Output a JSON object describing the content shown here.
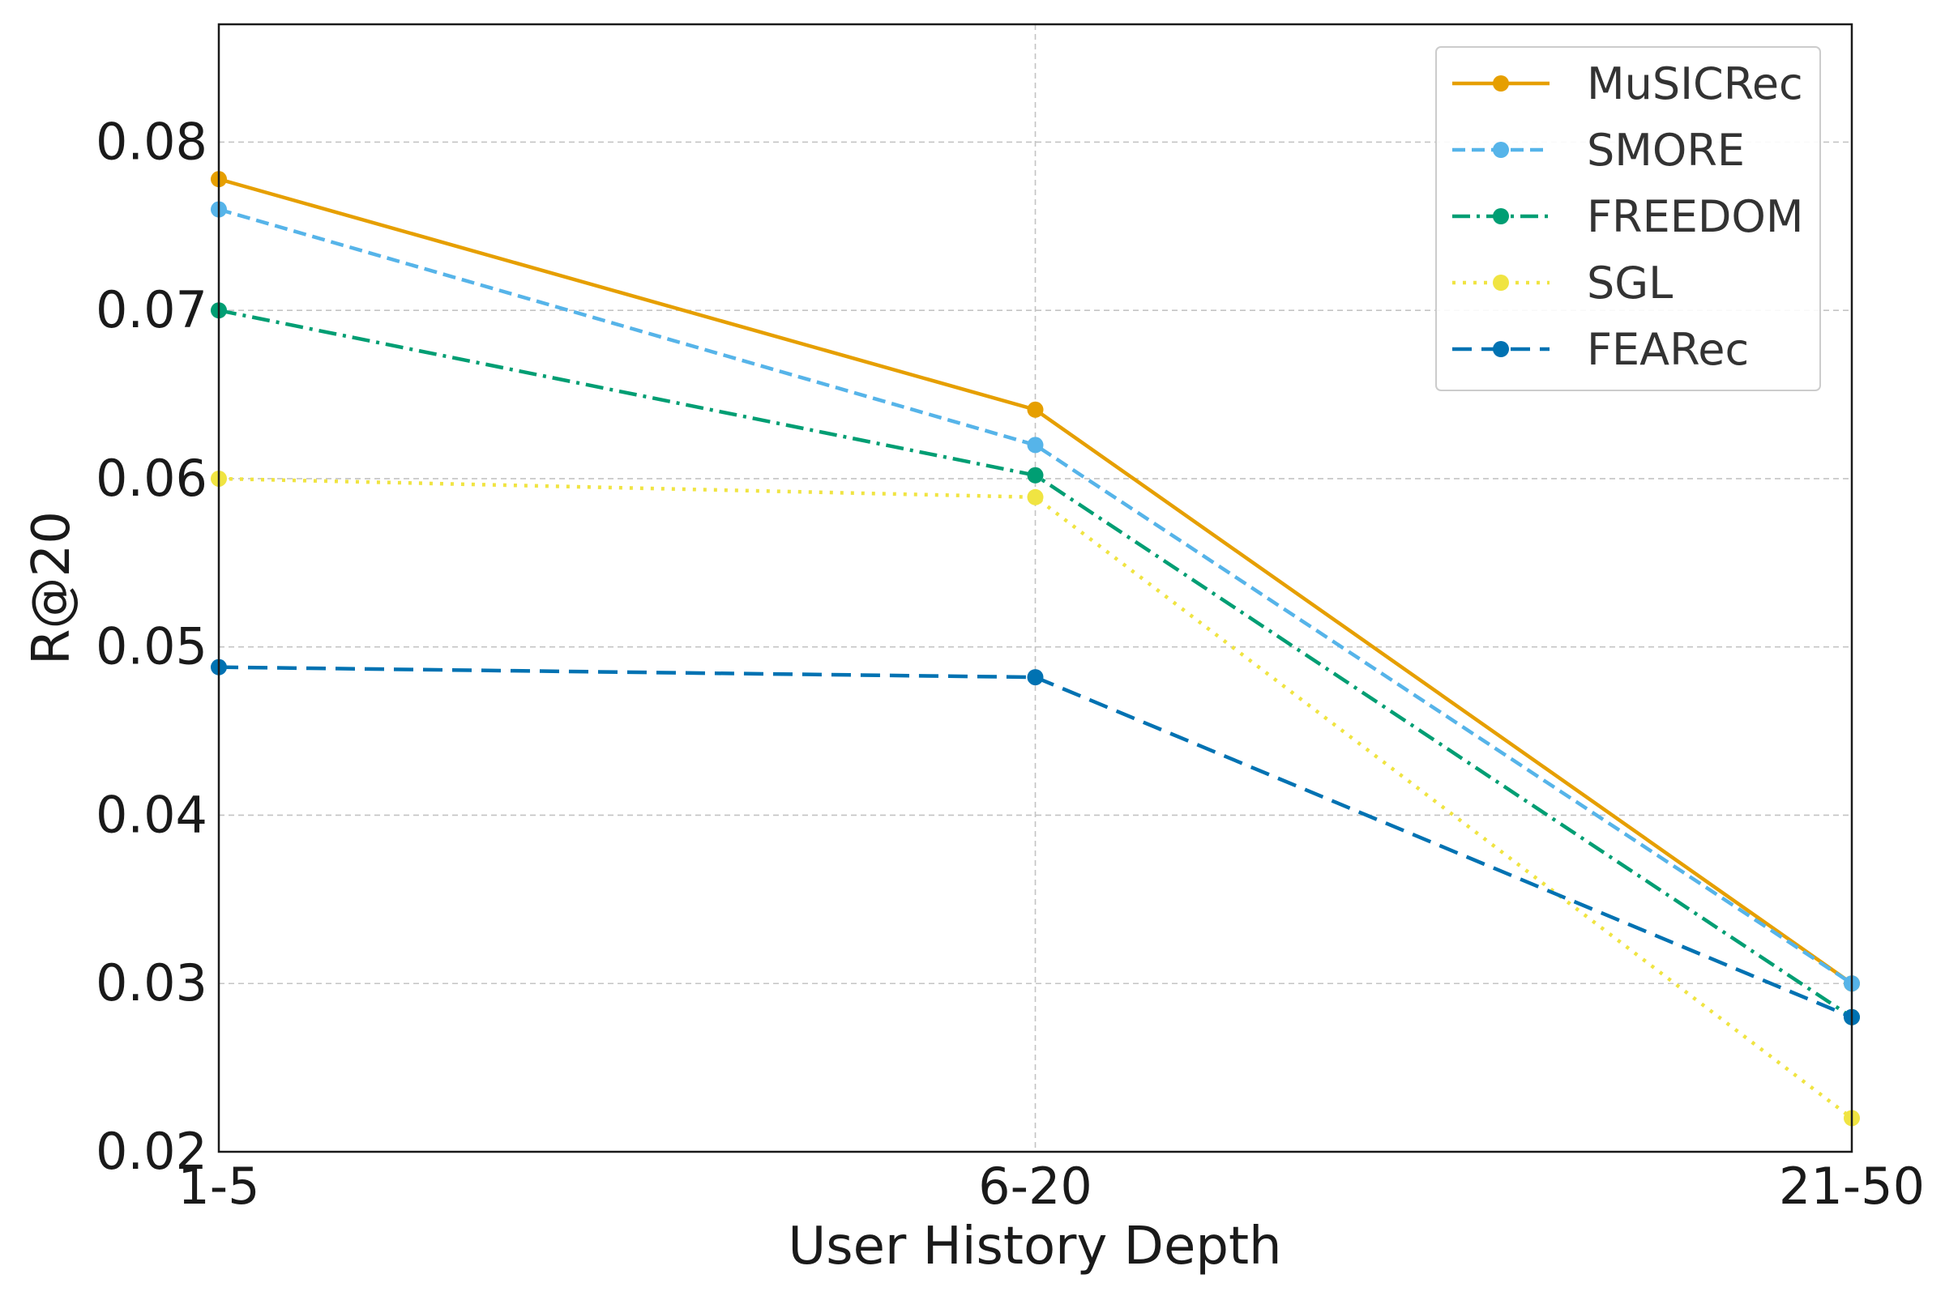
{
  "chart_data": {
    "type": "line",
    "title": "",
    "xlabel": "User History Depth",
    "ylabel": "R@20",
    "categories": [
      "1-5",
      "6-20",
      "21-50"
    ],
    "ylim": [
      0.02,
      0.087
    ],
    "yticks": [
      0.02,
      0.03,
      0.04,
      0.05,
      0.06,
      0.07,
      0.08
    ],
    "ytick_labels": [
      "0.02",
      "0.03",
      "0.04",
      "0.05",
      "0.06",
      "0.07",
      "0.08"
    ],
    "grid": true,
    "legend_position": "top-right",
    "series": [
      {
        "name": "MuSICRec",
        "values": [
          0.0778,
          0.0641,
          0.03
        ],
        "color": "#E69F00",
        "style": "solid"
      },
      {
        "name": "SMORE",
        "values": [
          0.076,
          0.062,
          0.03
        ],
        "color": "#56B4E9",
        "style": "dashed"
      },
      {
        "name": "FREEDOM",
        "values": [
          0.07,
          0.0602,
          0.028
        ],
        "color": "#009E73",
        "style": "dashdot"
      },
      {
        "name": "SGL",
        "values": [
          0.06,
          0.0589,
          0.022
        ],
        "color": "#F0E442",
        "style": "dotted"
      },
      {
        "name": "FEARec",
        "values": [
          0.0488,
          0.0482,
          0.028
        ],
        "color": "#0072B2",
        "style": "longdash"
      }
    ]
  }
}
